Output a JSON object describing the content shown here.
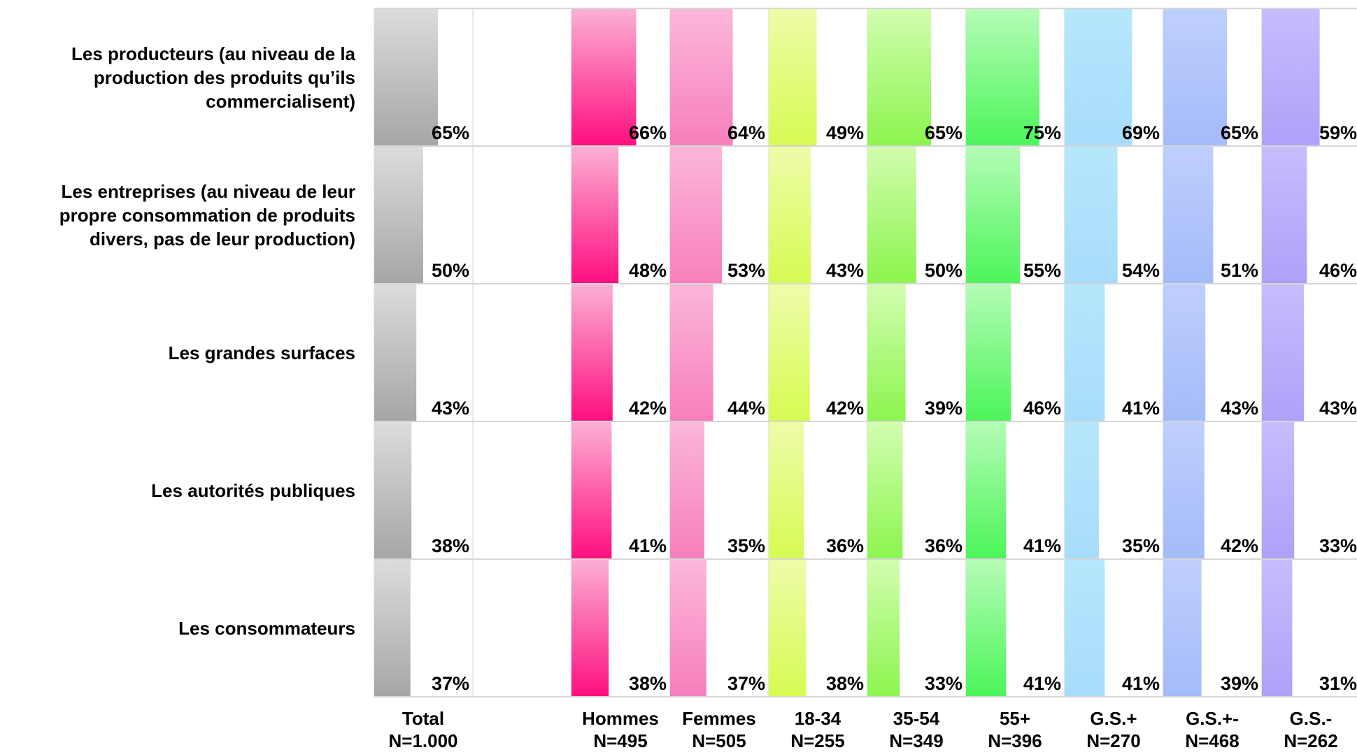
{
  "chart_data": {
    "type": "bar",
    "orientation": "vertical-panels",
    "row_labels": [
      "Les producteurs (au niveau de la\nproduction des produits qu’ils\ncommercialisent)",
      "Les entreprises (au niveau de leur\npropre consommation de produits\ndivers, pas de leur production)",
      "Les grandes surfaces",
      "Les autorités publiques",
      "Les consommateurs"
    ],
    "columns": [
      {
        "name": "Total",
        "n": "N=1.000",
        "color_top": "#dcdcdc",
        "color_bottom": "#a6a6a6"
      },
      {
        "name": "Hommes",
        "n": "N=495",
        "color_top": "#fbb0d4",
        "color_bottom": "#ff0f7f"
      },
      {
        "name": "Femmes",
        "n": "N=505",
        "color_top": "#fbb7da",
        "color_bottom": "#f77fbc"
      },
      {
        "name": "18-34",
        "n": "N=255",
        "color_top": "#eefcaa",
        "color_bottom": "#d6fb52"
      },
      {
        "name": "35-54",
        "n": "N=349",
        "color_top": "#d2fdb0",
        "color_bottom": "#8cf54e"
      },
      {
        "name": "55+",
        "n": "N=396",
        "color_top": "#b5fcb6",
        "color_bottom": "#4cf55a"
      },
      {
        "name": "G.S.+",
        "n": "N=270",
        "color_top": "#b6e7fc",
        "color_bottom": "#a7dcfb"
      },
      {
        "name": "G.S.+-",
        "n": "N=468",
        "color_top": "#bfcffc",
        "color_bottom": "#a4bbfa"
      },
      {
        "name": "G.S.-",
        "n": "N=262",
        "color_top": "#c8bcfc",
        "color_bottom": "#b0a0fa"
      }
    ],
    "values": [
      [
        65,
        66,
        64,
        49,
        65,
        75,
        69,
        65,
        59
      ],
      [
        50,
        48,
        53,
        43,
        50,
        55,
        54,
        51,
        46
      ],
      [
        43,
        42,
        44,
        42,
        39,
        46,
        41,
        43,
        43
      ],
      [
        38,
        41,
        35,
        36,
        36,
        41,
        35,
        42,
        33
      ],
      [
        37,
        38,
        37,
        38,
        33,
        41,
        41,
        39,
        31
      ]
    ],
    "unit": "%",
    "ylim": [
      0,
      100
    ],
    "grid": true
  }
}
